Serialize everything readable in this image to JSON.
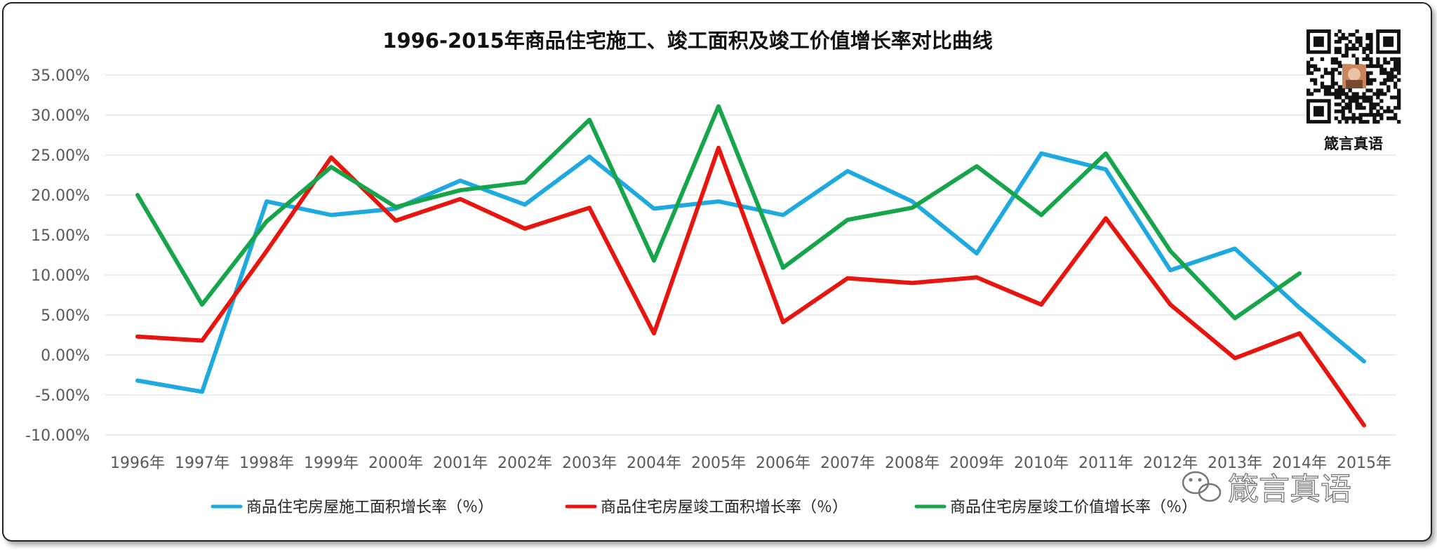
{
  "chart_data": {
    "type": "line",
    "title": "1996-2015年商品住宅施工、竣工面积及竣工价值增长率对比曲线",
    "categories": [
      "1996年",
      "1997年",
      "1998年",
      "1999年",
      "2000年",
      "2001年",
      "2002年",
      "2003年",
      "2004年",
      "2005年",
      "2006年",
      "2007年",
      "2008年",
      "2009年",
      "2010年",
      "2011年",
      "2012年",
      "2013年",
      "2014年",
      "2015年"
    ],
    "y_tick_labels": [
      "35.00%",
      "30.00%",
      "25.00%",
      "20.00%",
      "15.00%",
      "10.00%",
      "5.00%",
      "0.00%",
      "-5.00%",
      "-10.00%"
    ],
    "ylim": [
      -10,
      35
    ],
    "y_step": 5,
    "grid": true,
    "legend_position": "bottom",
    "series": [
      {
        "name": "商品住宅房屋施工面积增长率（％）",
        "color": "#1fa9e1",
        "values": [
          -3.2,
          -4.6,
          19.2,
          17.5,
          18.3,
          21.8,
          18.8,
          24.8,
          18.3,
          19.2,
          17.5,
          23.0,
          19.2,
          12.7,
          25.2,
          23.2,
          10.6,
          13.3,
          5.9,
          -0.8
        ]
      },
      {
        "name": "商品住宅房屋竣工面积增长率（％）",
        "color": "#e8150f",
        "values": [
          2.3,
          1.8,
          13.0,
          24.7,
          16.8,
          19.5,
          15.8,
          18.4,
          2.7,
          25.9,
          4.1,
          9.6,
          9.0,
          9.7,
          6.3,
          17.1,
          6.3,
          -0.4,
          2.7,
          -8.8
        ]
      },
      {
        "name": "商品住宅房屋竣工价值增长率（％）",
        "color": "#16a54a",
        "values": [
          20.0,
          6.3,
          16.7,
          23.5,
          18.5,
          20.6,
          21.6,
          29.4,
          11.8,
          31.1,
          10.9,
          16.9,
          18.4,
          23.6,
          17.5,
          25.2,
          13.0,
          4.6,
          10.2,
          null
        ]
      }
    ]
  },
  "qr": {
    "label": "箴言真语"
  },
  "watermark": {
    "text": "箴言真语",
    "icon": "wechat-icon"
  }
}
